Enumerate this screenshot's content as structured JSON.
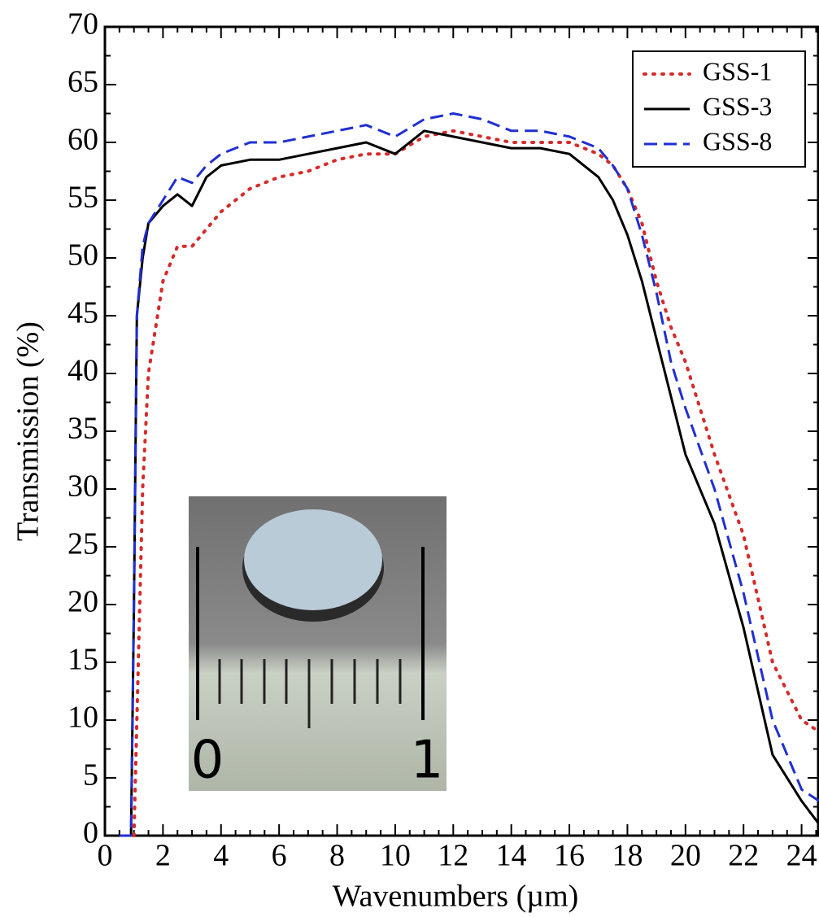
{
  "chart_data": {
    "type": "line",
    "x_label": "Wavenumbers (µm)",
    "y_label": "Transmission (%)",
    "x": [
      0.5,
      0.9,
      1.0,
      1.1,
      1.3,
      1.5,
      2,
      2.5,
      3,
      3.5,
      4,
      5,
      6,
      7,
      8,
      9,
      10,
      11,
      12,
      13,
      14,
      15,
      16,
      17,
      17.5,
      18,
      18.5,
      19,
      19.5,
      20,
      21,
      22,
      23,
      24,
      24.6
    ],
    "series": [
      {
        "name": "GSS-1",
        "color": "#d62a2a",
        "linestyle": "dotted",
        "values": [
          null,
          null,
          0,
          10,
          30,
          40,
          48,
          51,
          51,
          52.5,
          54,
          56,
          57,
          57.5,
          58.5,
          59,
          59,
          60.5,
          61,
          60.5,
          60,
          60,
          60,
          59,
          58,
          56,
          53,
          48,
          44,
          41,
          33,
          26,
          15,
          10,
          9
        ]
      },
      {
        "name": "GSS-3",
        "color": "#000000",
        "linestyle": "solid",
        "values": [
          0,
          0,
          20,
          45,
          50,
          53,
          54.5,
          55.5,
          54.5,
          57,
          58,
          58.5,
          58.5,
          59,
          59.5,
          60,
          59,
          61,
          60.5,
          60,
          59.5,
          59.5,
          59,
          57,
          55,
          52,
          48,
          43,
          38,
          33,
          27,
          18,
          7,
          3,
          1
        ]
      },
      {
        "name": "GSS-8",
        "color": "#1f2fd0",
        "linestyle": "dashed",
        "values": [
          0,
          0,
          20,
          45,
          51,
          53,
          55,
          57,
          56.5,
          58,
          59,
          60,
          60,
          60.5,
          61,
          61.5,
          60.5,
          62,
          62.5,
          62,
          61,
          61,
          60.5,
          59.5,
          58,
          56,
          52,
          47,
          41,
          37,
          30,
          21,
          10,
          4,
          3
        ]
      }
    ],
    "xlim": [
      0,
      24.6
    ],
    "xticks": [
      0,
      2,
      4,
      6,
      8,
      10,
      12,
      14,
      16,
      18,
      20,
      22,
      24
    ],
    "ylim": [
      0,
      70
    ],
    "yticks": [
      0,
      5,
      10,
      15,
      20,
      25,
      30,
      35,
      40,
      45,
      50,
      55,
      60,
      65,
      70
    ],
    "legend": "top-right",
    "inset": {
      "labels": [
        "0",
        "1"
      ]
    }
  }
}
